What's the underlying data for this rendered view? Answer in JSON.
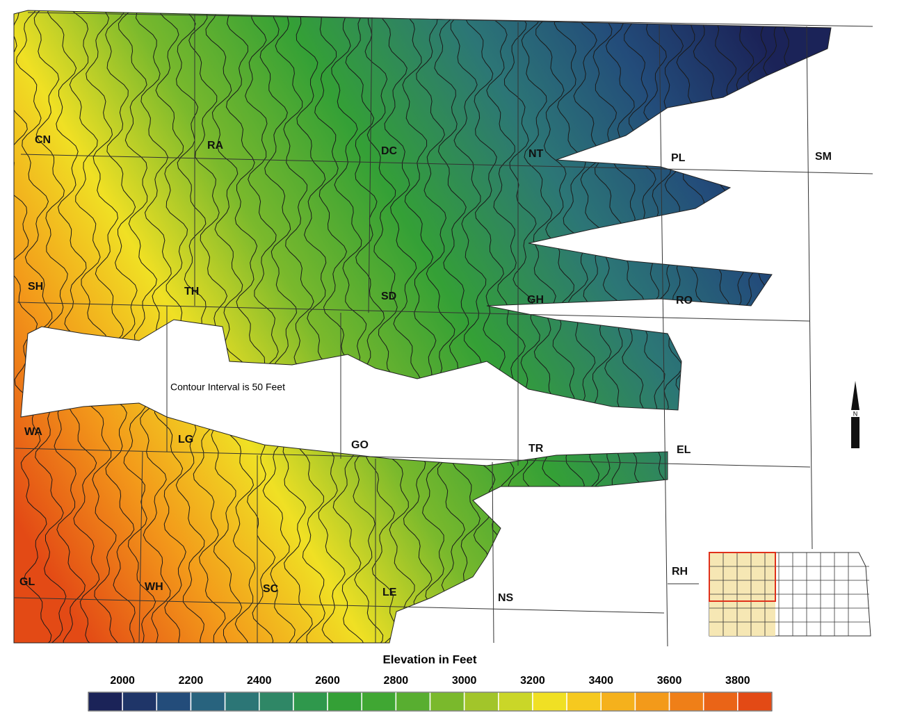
{
  "map": {
    "counties": [
      "CN",
      "RA",
      "DC",
      "NT",
      "PL",
      "SM",
      "SH",
      "TH",
      "SD",
      "GH",
      "RO",
      "WA",
      "LG",
      "GO",
      "TR",
      "EL",
      "GL",
      "WH",
      "SC",
      "LE",
      "NS",
      "RH"
    ],
    "contour_note": "Contour Interval is 50 Feet"
  },
  "legend": {
    "title": "Elevation in Feet",
    "range": [
      1900,
      3900
    ],
    "ticks": [
      2000,
      2200,
      2400,
      2600,
      2800,
      3000,
      3200,
      3400,
      3600,
      3800
    ],
    "colors": [
      "#1b2358",
      "#1f3568",
      "#234c7a",
      "#28637e",
      "#2c7676",
      "#2f8766",
      "#2f984c",
      "#34a036",
      "#40a733",
      "#58ae30",
      "#7ab92c",
      "#a2c52a",
      "#cad628",
      "#f0e024",
      "#f6c91f",
      "#f5b11c",
      "#f39a1a",
      "#ef7f18",
      "#ea6417",
      "#e34a15"
    ]
  }
}
